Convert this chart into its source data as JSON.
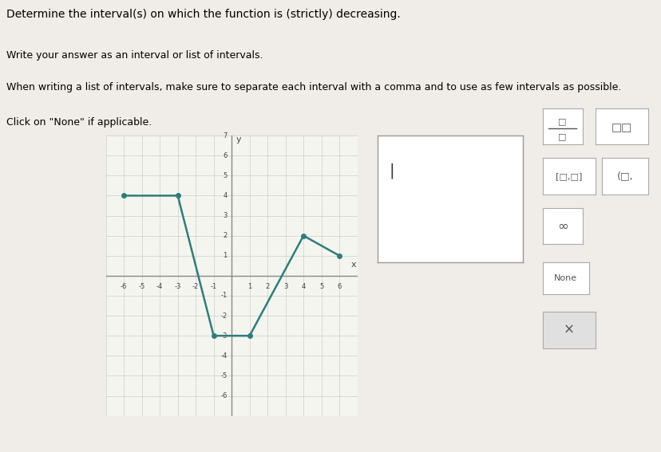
{
  "graph_points": [
    [
      -6,
      4
    ],
    [
      -3,
      4
    ],
    [
      -1,
      -3
    ],
    [
      1,
      -3
    ],
    [
      4,
      2
    ],
    [
      6,
      1
    ]
  ],
  "dot_points": [
    [
      -6,
      4
    ],
    [
      -3,
      4
    ],
    [
      -1,
      -3
    ],
    [
      1,
      -3
    ],
    [
      4,
      2
    ],
    [
      6,
      1
    ]
  ],
  "line_color": "#2e7d7d",
  "dot_color": "#2e7d7d",
  "xlim": [
    -7,
    7
  ],
  "ylim": [
    -7,
    7
  ],
  "grid_color": "#cccccc",
  "bg_color": "#f5f5f0",
  "axis_color": "#888888",
  "text_instructions": [
    "Determine the interval(s) on which the function is (strictly) decreasing.",
    "Write your answer as an interval or list of intervals.",
    "When writing a list of intervals, make sure to separate each interval with a comma and to use as few intervals as possible.",
    "Click on \"None\" if applicable."
  ],
  "answer_box_color": "#ffffff",
  "symbol_fraction_top": "□",
  "symbol_fraction_bot": "□",
  "symbol_boxes": "□□",
  "symbol_bracket_closed": "[□,□]",
  "symbol_bracket_open": "(□,",
  "symbol_infinity": "∞",
  "symbol_none": "None",
  "symbol_x": "×",
  "title_font_size": 10,
  "body_font_size": 9
}
